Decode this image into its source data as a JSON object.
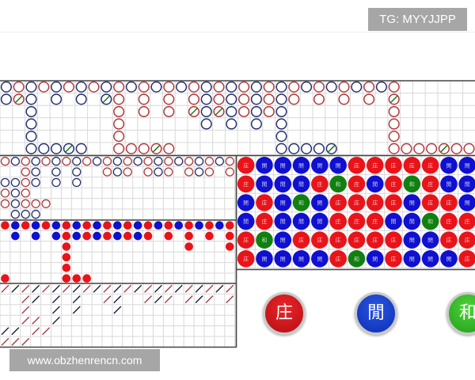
{
  "header": {
    "tg_label": "TG: MYYJJPP"
  },
  "watermark": {
    "text": "www.obzhenrencn.com"
  },
  "colors": {
    "banker": "#e8141a",
    "player": "#1010d0",
    "tie": "#108010",
    "banker_outline": "#b0393b",
    "player_outline": "#24306e"
  },
  "big_road": {
    "legend": "b=banker, p=player, x=banker+tie, y=player+tie, .=empty; each string is one column top to bottom",
    "columns": [
      "pp....",
      "bx....",
      "pppppp",
      "b....p",
      "pp...p",
      "b....y",
      "pp...p",
      "b.....",
      "py....",
      "bbbbbb",
      "p....b",
      "bbb..b",
      "p....x",
      "bbb..b",
      "p.....",
      "bbx...",
      "pppp..",
      "bbx...",
      "pppp..",
      "bbb...",
      "pppp..",
      "bbb...",
      "pppppp",
      "bb...p",
      "p....p",
      "bb...p",
      "p....y",
      "bb....",
      "p.....",
      "bb....",
      "p.....",
      "bxbbbb",
      ".....b",
      ".....b",
      ".....b",
      ".....x",
      ".....b",
      ".....b"
    ]
  },
  "big_eye_road": {
    "columns": [
      "r.urr.",
      "u.uuuu",
      "rrrrru",
      "uuu.ru",
      "r...r.",
      "uuu...",
      "r.....",
      "uuu...",
      "r.....",
      "u.....",
      "rr....",
      "uu....",
      "rr....",
      "u.....",
      "rr....",
      "uu....",
      "rr....",
      "u.....",
      "rr....",
      "uu....",
      "rr....",
      "u.....",
      "rr....",
      "u....."
    ]
  },
  "small_road": {
    "columns": [
      "b....b",
      "pp....",
      "b.....",
      "pp....",
      "b.....",
      "pp....",
      "bbbbbb",
      "pp...b",
      "bb...b",
      "pp....",
      "bb....",
      "pp....",
      "bb....",
      "pp....",
      "bb....",
      "p.....",
      "bb....",
      "p.....",
      "bbb...",
      "p.....",
      "bb....",
      "p.....",
      "bbb...",
      "p....."
    ]
  },
  "cockroach_road": {
    "columns": [
      "r...dr",
      "d...dr",
      "rrrr.r",
      "dd.rr.",
      "r...r.",
      "dddd..",
      "r.....",
      "ddd...",
      "r.....",
      "d.....",
      "rr....",
      "ddd...",
      "r.....",
      "d.....",
      "rr....",
      "dd....",
      "rr....",
      "d.....",
      "rr....",
      "dd....",
      "rr....",
      "d.....",
      "rr....",
      "d....."
    ]
  },
  "bead_plate": {
    "labels": {
      "B": "庄",
      "P": "閒",
      "T": "和"
    },
    "rows": [
      "BPPPPPBBBBBPP",
      "BPPPBTBPBTBPP",
      "PBPTPBBBBPBBP",
      "PBPPPBBBPPTBB",
      "BTPBBBBBBPPBB",
      "BPPPPBTPBPPPB"
    ]
  },
  "buttons": [
    {
      "id": "banker",
      "label": "庄"
    },
    {
      "id": "player",
      "label": "閒"
    },
    {
      "id": "tie",
      "label": "和"
    }
  ]
}
